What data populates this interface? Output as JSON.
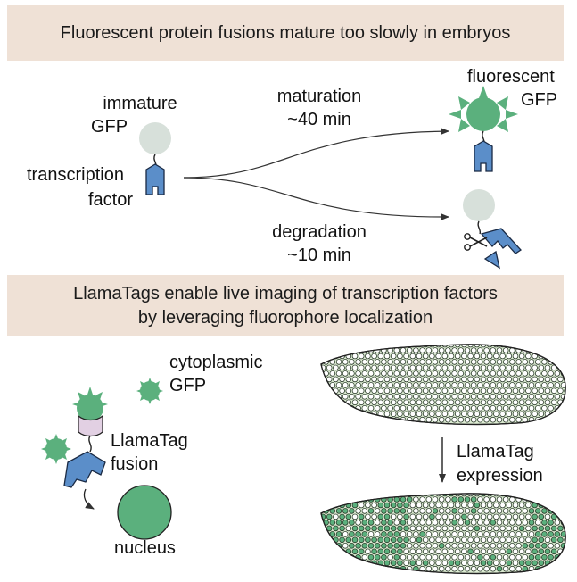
{
  "top_banner": {
    "title": "Fluorescent protein fusions mature too slowly in embryos"
  },
  "top_panel": {
    "immature_label_1": "immature",
    "immature_label_2": "GFP",
    "tf_label_1": "transcription",
    "tf_label_2": "factor",
    "maturation_label": "maturation",
    "maturation_time": "~40 min",
    "degradation_label": "degradation",
    "degradation_time": "~10 min",
    "fluorescent_label_1": "fluorescent",
    "fluorescent_label_2": "GFP"
  },
  "mid_banner": {
    "line1": "LlamaTags enable live imaging of transcription factors",
    "line2": "by leveraging fluorophore localization"
  },
  "bottom_panel": {
    "cytoplasmic_label_1": "cytoplasmic",
    "cytoplasmic_label_2": "GFP",
    "llamatag_label_1": "LlamaTag",
    "llamatag_label_2": "fusion",
    "nucleus_label": "nucleus",
    "expression_label_1": "LlamaTag",
    "expression_label_2": "expression"
  },
  "colors": {
    "banner": "#efe1d6",
    "immature_gfp": "#d7e0da",
    "mature_gfp": "#5bb07d",
    "tf_blue": "#5b8ec9",
    "llamatag": "#e2d0e3",
    "embryo_fill": "#dcebd2"
  }
}
